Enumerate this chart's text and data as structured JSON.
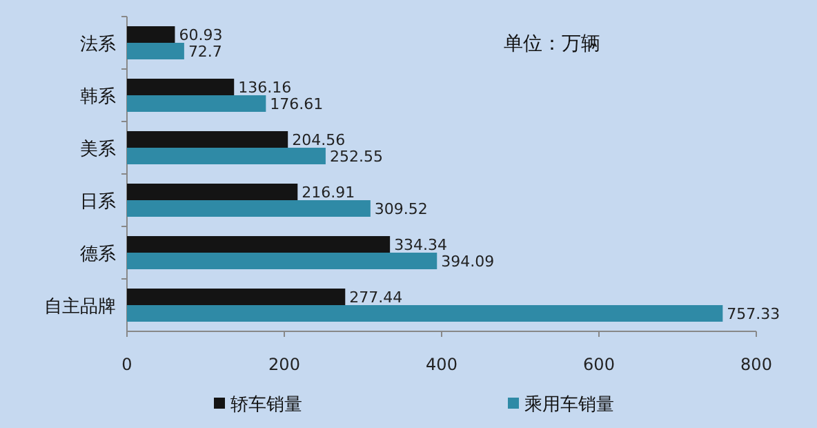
{
  "chart_data": {
    "type": "bar",
    "orientation": "horizontal",
    "categories": [
      "法系",
      "韩系",
      "美系",
      "日系",
      "德系",
      "自主品牌"
    ],
    "series": [
      {
        "name": "轿车销量",
        "color": "#141414",
        "values": [
          60.93,
          136.16,
          204.56,
          216.91,
          334.34,
          277.44
        ]
      },
      {
        "name": "乘用车销量",
        "color": "#2f8aa6",
        "values": [
          72.7,
          176.61,
          252.55,
          309.52,
          394.09,
          757.33
        ]
      }
    ],
    "xlim": [
      0,
      800
    ],
    "xticks": [
      0,
      200,
      400,
      600,
      800
    ],
    "data_labels": true,
    "legend": "bottom",
    "grid": false,
    "annotations": [
      "单位：万辆"
    ]
  }
}
